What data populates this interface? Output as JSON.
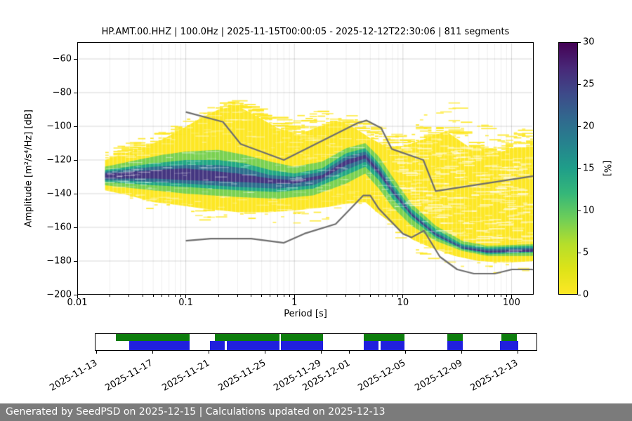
{
  "chart_data": {
    "type": "heatmap",
    "title": "HP.AMT.00.HHZ | 100.0Hz | 2025-11-15T00:00:05 - 2025-12-12T22:30:06 | 811 segments",
    "xlabel": "Period [s]",
    "ylabel": "Amplitude [m²/s⁴/Hz] [dB]",
    "xscale": "log",
    "xlim": [
      0.01,
      160
    ],
    "ylim": [
      -200,
      -50
    ],
    "xticks": [
      0.01,
      0.1,
      1,
      10,
      100
    ],
    "xtick_labels": [
      "0.01",
      "0.1",
      "1",
      "10",
      "100"
    ],
    "yticks": [
      -60,
      -80,
      -100,
      -120,
      -140,
      -160,
      -180,
      -200
    ],
    "grid": true,
    "colorbar": {
      "label": "[%]",
      "min": 0,
      "max": 30,
      "ticks": [
        0,
        5,
        10,
        15,
        20,
        25,
        30
      ],
      "colors_bottom_to_top": [
        "#fde725",
        "#dde318",
        "#b5de2b",
        "#6ece58",
        "#35b779",
        "#1f9e89",
        "#26828e",
        "#31688e",
        "#3e4989",
        "#482878",
        "#440154"
      ]
    },
    "noise_models": {
      "color": "#6e6e6e",
      "high": [
        [
          0.1,
          -91.5
        ],
        [
          0.22,
          -97.4
        ],
        [
          0.32,
          -110.5
        ],
        [
          0.8,
          -120.0
        ],
        [
          3.8,
          -98.1
        ],
        [
          4.6,
          -96.5
        ],
        [
          6.3,
          -101.0
        ],
        [
          7.9,
          -113.5
        ],
        [
          15.4,
          -120.0
        ],
        [
          20.0,
          -138.5
        ],
        [
          160,
          -129.5
        ]
      ],
      "low": [
        [
          0.1,
          -168.0
        ],
        [
          0.17,
          -166.7
        ],
        [
          0.4,
          -166.7
        ],
        [
          0.8,
          -169.2
        ],
        [
          1.24,
          -163.7
        ],
        [
          2.4,
          -158.0
        ],
        [
          4.3,
          -141.1
        ],
        [
          5.0,
          -141.1
        ],
        [
          6.0,
          -149.0
        ],
        [
          10.0,
          -163.8
        ],
        [
          12.0,
          -166.0
        ],
        [
          15.6,
          -162.0
        ],
        [
          21.9,
          -177.5
        ],
        [
          31.6,
          -185.0
        ],
        [
          45.0,
          -187.5
        ],
        [
          70.0,
          -187.5
        ],
        [
          101.0,
          -185.0
        ],
        [
          154.0,
          -185.0
        ],
        [
          160,
          -185.2
        ]
      ]
    },
    "ppsd_cloud": {
      "period_range": [
        0.018,
        160
      ],
      "streak_upper": [
        [
          0.018,
          -112
        ],
        [
          0.04,
          -106
        ],
        [
          0.08,
          -98
        ],
        [
          0.15,
          -88
        ],
        [
          0.25,
          -84
        ],
        [
          0.4,
          -88
        ],
        [
          0.7,
          -95
        ],
        [
          1.2,
          -92
        ],
        [
          2,
          -89
        ],
        [
          3,
          -93
        ],
        [
          5,
          -100
        ],
        [
          7,
          -104
        ],
        [
          9,
          -105
        ],
        [
          13,
          -96
        ],
        [
          20,
          -88
        ],
        [
          27,
          -85
        ],
        [
          38,
          -93
        ],
        [
          55,
          -100
        ],
        [
          80,
          -105
        ],
        [
          120,
          -100
        ],
        [
          160,
          -103
        ]
      ],
      "levels": [
        {
          "min_percent": 2,
          "color": "#fde725",
          "upper": [
            [
              0.018,
              -120
            ],
            [
              0.025,
              -117
            ],
            [
              0.04,
              -113
            ],
            [
              0.06,
              -108
            ],
            [
              0.09,
              -102
            ],
            [
              0.13,
              -96
            ],
            [
              0.2,
              -90
            ],
            [
              0.3,
              -88
            ],
            [
              0.45,
              -94
            ],
            [
              0.7,
              -101
            ],
            [
              1.1,
              -105
            ],
            [
              1.7,
              -100
            ],
            [
              2.6,
              -97
            ],
            [
              3.6,
              -101
            ],
            [
              5,
              -107
            ],
            [
              7,
              -112
            ],
            [
              10,
              -112
            ],
            [
              15,
              -108
            ],
            [
              25,
              -103
            ],
            [
              40,
              -112
            ],
            [
              70,
              -116
            ],
            [
              110,
              -113
            ],
            [
              160,
              -112
            ]
          ],
          "lower": [
            [
              0.018,
              -138
            ],
            [
              0.03,
              -141
            ],
            [
              0.05,
              -145
            ],
            [
              0.09,
              -147
            ],
            [
              0.15,
              -149
            ],
            [
              0.3,
              -151
            ],
            [
              0.6,
              -151
            ],
            [
              1,
              -150
            ],
            [
              2,
              -148
            ],
            [
              3,
              -146
            ],
            [
              4.5,
              -145
            ],
            [
              6,
              -152
            ],
            [
              8,
              -158
            ],
            [
              12,
              -167
            ],
            [
              18,
              -172
            ],
            [
              30,
              -177
            ],
            [
              50,
              -180
            ],
            [
              90,
              -181
            ],
            [
              160,
              -180
            ]
          ]
        },
        {
          "min_percent": 8,
          "color": "#7ad151",
          "upper": [
            [
              0.018,
              -124
            ],
            [
              0.03,
              -121
            ],
            [
              0.06,
              -117
            ],
            [
              0.1,
              -115
            ],
            [
              0.2,
              -114
            ],
            [
              0.35,
              -117
            ],
            [
              0.6,
              -121
            ],
            [
              1,
              -124
            ],
            [
              1.8,
              -121
            ],
            [
              3,
              -113
            ],
            [
              4.5,
              -110
            ],
            [
              6,
              -118
            ],
            [
              8,
              -130
            ],
            [
              12,
              -146
            ],
            [
              20,
              -159
            ],
            [
              35,
              -168
            ],
            [
              60,
              -171
            ],
            [
              160,
              -170
            ]
          ],
          "lower": [
            [
              0.018,
              -135
            ],
            [
              0.05,
              -138
            ],
            [
              0.1,
              -140
            ],
            [
              0.3,
              -142
            ],
            [
              0.7,
              -143
            ],
            [
              1.5,
              -141
            ],
            [
              3,
              -134
            ],
            [
              4.5,
              -128
            ],
            [
              6,
              -137
            ],
            [
              8,
              -148
            ],
            [
              12,
              -159
            ],
            [
              20,
              -168
            ],
            [
              35,
              -174
            ],
            [
              60,
              -177
            ],
            [
              160,
              -177
            ]
          ]
        },
        {
          "min_percent": 14,
          "color": "#22a884",
          "upper": [
            [
              0.018,
              -126
            ],
            [
              0.05,
              -122
            ],
            [
              0.1,
              -120
            ],
            [
              0.2,
              -120
            ],
            [
              0.35,
              -122
            ],
            [
              0.6,
              -126
            ],
            [
              1,
              -128
            ],
            [
              1.8,
              -125
            ],
            [
              3,
              -116
            ],
            [
              4.5,
              -113
            ],
            [
              6,
              -122
            ],
            [
              8,
              -134
            ],
            [
              12,
              -149
            ],
            [
              20,
              -161
            ],
            [
              35,
              -170
            ],
            [
              60,
              -172
            ],
            [
              160,
              -171
            ]
          ],
          "lower": [
            [
              0.018,
              -133
            ],
            [
              0.05,
              -135
            ],
            [
              0.1,
              -136
            ],
            [
              0.3,
              -138
            ],
            [
              0.7,
              -139
            ],
            [
              1.5,
              -137
            ],
            [
              3,
              -129
            ],
            [
              4.5,
              -124
            ],
            [
              6,
              -132
            ],
            [
              8,
              -143
            ],
            [
              12,
              -155
            ],
            [
              20,
              -166
            ],
            [
              35,
              -173
            ],
            [
              60,
              -176
            ],
            [
              160,
              -175
            ]
          ]
        },
        {
          "min_percent": 20,
          "color": "#2e6f8e",
          "upper": [
            [
              0.018,
              -127
            ],
            [
              0.05,
              -124
            ],
            [
              0.1,
              -123
            ],
            [
              0.2,
              -123
            ],
            [
              0.35,
              -125
            ],
            [
              0.6,
              -129
            ],
            [
              1,
              -130
            ],
            [
              1.8,
              -127
            ],
            [
              3,
              -118
            ],
            [
              4.5,
              -115
            ],
            [
              6,
              -124
            ],
            [
              8,
              -136
            ],
            [
              12,
              -151
            ],
            [
              20,
              -163
            ],
            [
              35,
              -171
            ],
            [
              60,
              -173
            ],
            [
              160,
              -172
            ]
          ],
          "lower": [
            [
              0.018,
              -132
            ],
            [
              0.05,
              -133
            ],
            [
              0.1,
              -134
            ],
            [
              0.3,
              -136
            ],
            [
              0.7,
              -137
            ],
            [
              1.5,
              -135
            ],
            [
              3,
              -126
            ],
            [
              4.5,
              -121
            ],
            [
              6,
              -129
            ],
            [
              8,
              -140
            ],
            [
              12,
              -153
            ],
            [
              20,
              -165
            ],
            [
              35,
              -172
            ],
            [
              60,
              -175
            ],
            [
              160,
              -174
            ]
          ]
        },
        {
          "min_percent": 26,
          "color": "#453781",
          "upper": [
            [
              0.018,
              -128
            ],
            [
              0.05,
              -126
            ],
            [
              0.1,
              -125
            ],
            [
              0.3,
              -128
            ],
            [
              0.6,
              -131
            ],
            [
              1,
              -132
            ],
            [
              1.8,
              -129
            ],
            [
              3,
              -120
            ],
            [
              4.5,
              -117
            ],
            [
              6,
              -126
            ],
            [
              8,
              -138
            ],
            [
              12,
              -152
            ],
            [
              20,
              -164
            ],
            [
              35,
              -172
            ],
            [
              60,
              -174
            ],
            [
              160,
              -173
            ]
          ],
          "lower": [
            [
              0.018,
              -131
            ],
            [
              0.05,
              -131
            ],
            [
              0.1,
              -132
            ],
            [
              0.3,
              -133
            ],
            [
              0.6,
              -134
            ],
            [
              1,
              -134
            ],
            [
              1.8,
              -131
            ],
            [
              3,
              -123
            ],
            [
              4.5,
              -119
            ],
            [
              6,
              -128
            ],
            [
              8,
              -139
            ],
            [
              12,
              -153
            ],
            [
              20,
              -164.5
            ],
            [
              35,
              -172.5
            ],
            [
              60,
              -175
            ],
            [
              160,
              -174.5
            ]
          ]
        }
      ]
    }
  },
  "timeline": {
    "green_color": "#0d7d0d",
    "blue_color": "#2020dd",
    "ticks": [
      {
        "label": "2025-11-13",
        "f": 0.002
      },
      {
        "label": "2025-11-17",
        "f": 0.129
      },
      {
        "label": "2025-11-21",
        "f": 0.257
      },
      {
        "label": "2025-11-25",
        "f": 0.384
      },
      {
        "label": "2025-11-29",
        "f": 0.511
      },
      {
        "label": "2025-12-01",
        "f": 0.575
      },
      {
        "label": "2025-12-05",
        "f": 0.702
      },
      {
        "label": "2025-12-09",
        "f": 0.83
      },
      {
        "label": "2025-12-13",
        "f": 0.957
      }
    ],
    "green_segments": [
      {
        "from": 0.046,
        "to": 0.213
      },
      {
        "from": 0.271,
        "to": 0.417
      },
      {
        "from": 0.42,
        "to": 0.516
      },
      {
        "from": 0.608,
        "to": 0.701
      },
      {
        "from": 0.798,
        "to": 0.833
      },
      {
        "from": 0.92,
        "to": 0.955
      }
    ],
    "blue_segments": [
      {
        "from": 0.076,
        "to": 0.213
      },
      {
        "from": 0.26,
        "to": 0.293
      },
      {
        "from": 0.298,
        "to": 0.417
      },
      {
        "from": 0.42,
        "to": 0.516
      },
      {
        "from": 0.608,
        "to": 0.642
      },
      {
        "from": 0.646,
        "to": 0.701
      },
      {
        "from": 0.798,
        "to": 0.833
      },
      {
        "from": 0.917,
        "to": 0.958
      }
    ]
  },
  "footer": {
    "text": "Generated by SeedPSD on 2025-12-15 | Calculations updated on 2025-12-13",
    "bg": "#7b7b7b"
  }
}
